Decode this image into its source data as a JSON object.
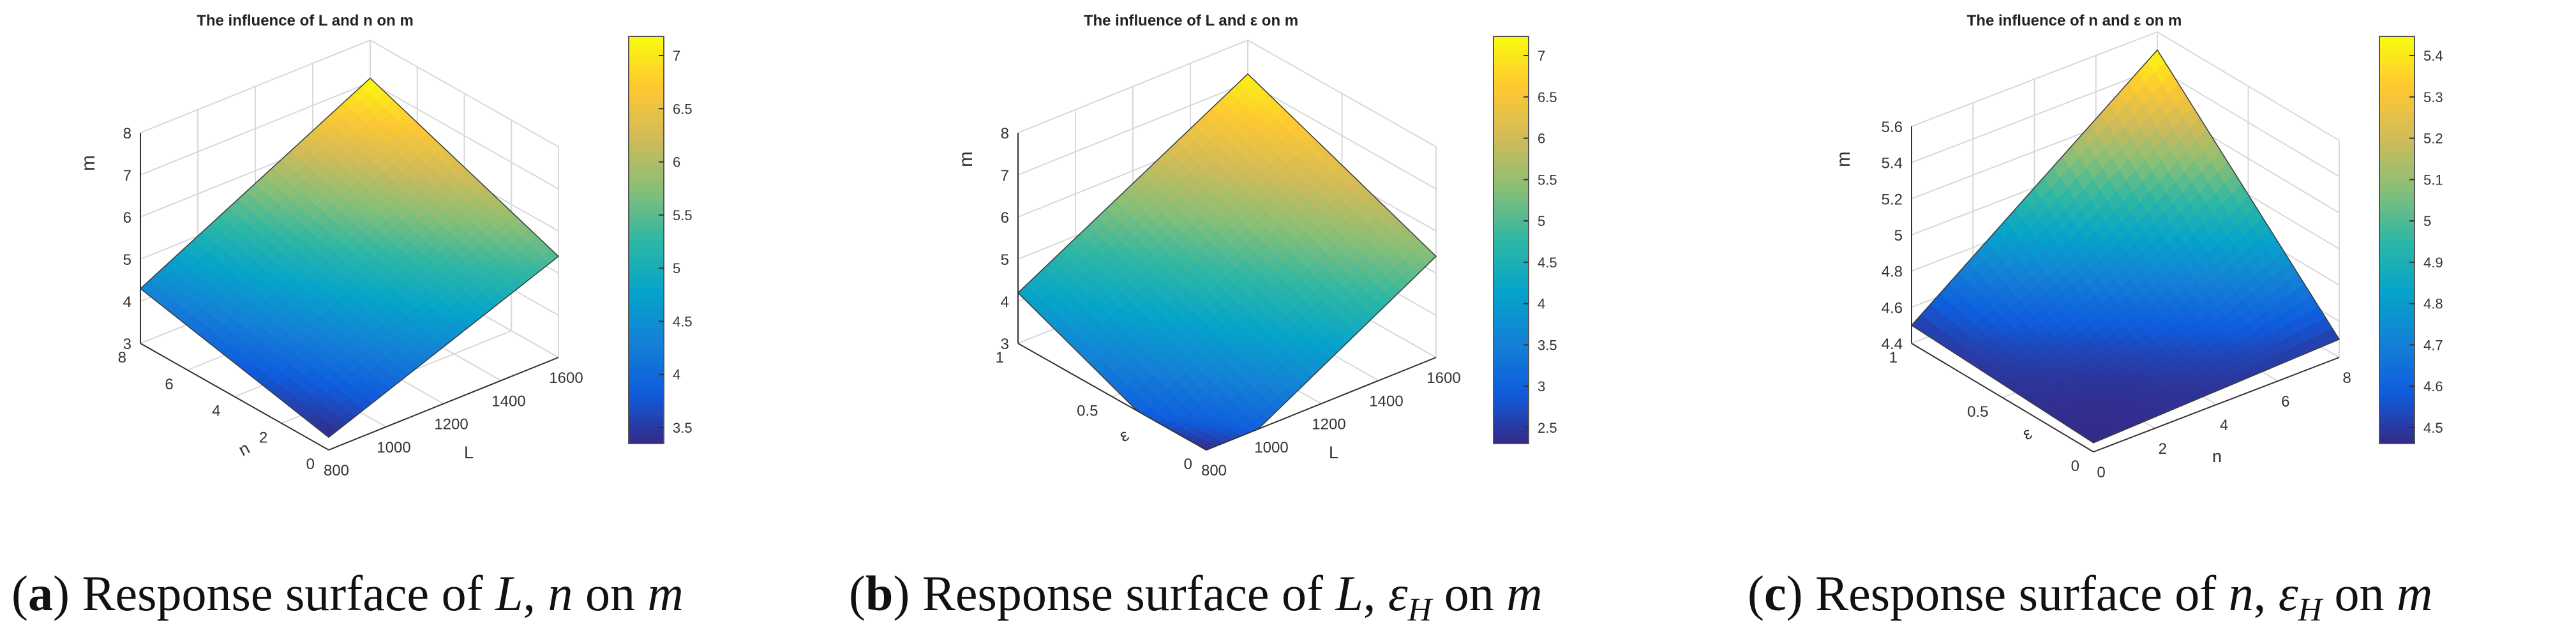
{
  "chart_data": [
    {
      "type": "surface",
      "title": "The influence of L and n on m",
      "xlabel": "L",
      "ylabel": "n",
      "zlabel": "m",
      "x_ticks": [
        "800",
        "1000",
        "1200",
        "1400",
        "1600"
      ],
      "y_ticks": [
        "0",
        "2",
        "4",
        "6",
        "8"
      ],
      "z_ticks": [
        "3",
        "4",
        "5",
        "6",
        "7",
        "8"
      ],
      "xlim": [
        800,
        1600
      ],
      "ylim": [
        0,
        8
      ],
      "zlim": [
        3,
        8
      ],
      "surface_corners": [
        {
          "L": 800,
          "n": 0,
          "m": 3.3
        },
        {
          "L": 1600,
          "n": 0,
          "m": 5.4
        },
        {
          "L": 1600,
          "n": 8,
          "m": 7.1
        },
        {
          "L": 800,
          "n": 8,
          "m": 4.3
        }
      ],
      "colorbar": {
        "ticks": [
          "3.5",
          "4",
          "4.5",
          "5",
          "5.5",
          "6",
          "6.5",
          "7"
        ],
        "range": [
          3.3,
          7.1
        ]
      },
      "colormap": [
        "#352a87",
        "#0f5cdd",
        "#1481d6",
        "#06a4ca",
        "#2eb7a4",
        "#87bf77",
        "#d1bb59",
        "#fec832",
        "#f9fb0e"
      ],
      "grid": true
    },
    {
      "type": "surface",
      "title": "The influence of L and ε on m",
      "xlabel": "L",
      "ylabel": "ε",
      "zlabel": "m",
      "x_ticks": [
        "800",
        "1000",
        "1200",
        "1400",
        "1600"
      ],
      "y_ticks": [
        "0",
        "0.5",
        "1"
      ],
      "z_ticks": [
        "3",
        "4",
        "5",
        "6",
        "7",
        "8"
      ],
      "xlim": [
        800,
        1600
      ],
      "ylim": [
        0,
        1
      ],
      "zlim": [
        3,
        8
      ],
      "surface_corners": [
        {
          "L": 800,
          "ε": 0,
          "m": 2.3
        },
        {
          "L": 1600,
          "ε": 0,
          "m": 5.4
        },
        {
          "L": 1600,
          "ε": 1,
          "m": 7.2
        },
        {
          "L": 800,
          "ε": 1,
          "m": 4.2
        }
      ],
      "colorbar": {
        "ticks": [
          "2.5",
          "3",
          "3.5",
          "4",
          "4.5",
          "5",
          "5.5",
          "6",
          "6.5",
          "7"
        ],
        "range": [
          2.3,
          7.3
        ]
      },
      "colormap": [
        "#352a87",
        "#0f5cdd",
        "#1481d6",
        "#06a4ca",
        "#2eb7a4",
        "#87bf77",
        "#d1bb59",
        "#fec832",
        "#f9fb0e"
      ],
      "grid": true
    },
    {
      "type": "surface",
      "title": "The influence of n and ε on m",
      "xlabel": "n",
      "ylabel": "ε",
      "zlabel": "m",
      "x_ticks": [
        "0",
        "2",
        "4",
        "6",
        "8"
      ],
      "y_ticks": [
        "0",
        "0.5",
        "1"
      ],
      "z_ticks": [
        "4.4",
        "4.6",
        "4.8",
        "5",
        "5.2",
        "5.4",
        "5.6"
      ],
      "xlim": [
        0,
        8
      ],
      "ylim": [
        0,
        1
      ],
      "zlim": [
        4.4,
        5.6
      ],
      "surface_corners": [
        {
          "n": 0,
          "ε": 0,
          "m": 4.45
        },
        {
          "n": 8,
          "ε": 0,
          "m": 4.5
        },
        {
          "n": 8,
          "ε": 1,
          "m": 5.5
        },
        {
          "n": 0,
          "ε": 1,
          "m": 4.5
        }
      ],
      "colorbar": {
        "ticks": [
          "4.5",
          "4.6",
          "4.7",
          "4.8",
          "4.9",
          "5",
          "5.1",
          "5.2",
          "5.3",
          "5.4"
        ],
        "range": [
          4.45,
          5.5
        ]
      },
      "colormap": [
        "#352a87",
        "#0f5cdd",
        "#1481d6",
        "#06a4ca",
        "#2eb7a4",
        "#87bf77",
        "#d1bb59",
        "#fec832",
        "#f9fb0e"
      ],
      "grid": true
    }
  ],
  "captions": {
    "a": {
      "tag": "a",
      "pre": "Response surface of ",
      "v1": "L",
      "mid": ", ",
      "v2": "n",
      "post": " on ",
      "v3": "m"
    },
    "b": {
      "tag": "b",
      "pre": "Response surface of ",
      "v1": "L",
      "mid": ", ",
      "v2": "ε",
      "sub": "H",
      "post": " on ",
      "v3": "m"
    },
    "c": {
      "tag": "c",
      "pre": "Response surface of ",
      "v1": "n",
      "mid": ", ",
      "v2": "ε",
      "sub": "H",
      "post": " on ",
      "v3": "m"
    }
  }
}
